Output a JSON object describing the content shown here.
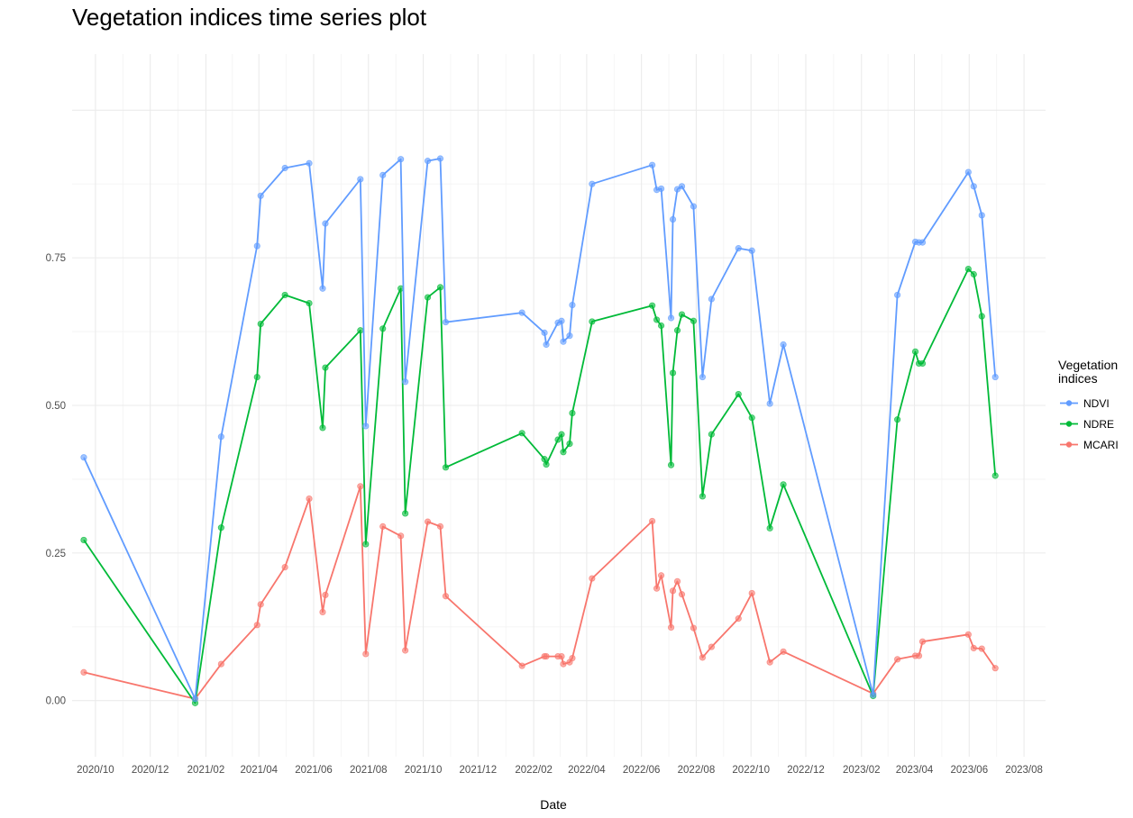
{
  "chart_data": {
    "type": "line",
    "title": "Vegetation indices time series plot",
    "xlabel": "Date",
    "ylabel": "",
    "xlim": [
      "2020-09-05",
      "2023-08-25"
    ],
    "ylim": [
      -0.095,
      1.095
    ],
    "y_ticks": [
      0.0,
      0.25,
      0.5,
      0.75
    ],
    "y_tick_labels": [
      "0.00",
      "0.25",
      "0.50",
      "0.75"
    ],
    "x_ticks": [
      "2020-10-01",
      "2020-12-01",
      "2021-02-01",
      "2021-04-01",
      "2021-06-01",
      "2021-08-01",
      "2021-10-01",
      "2021-12-01",
      "2022-02-01",
      "2022-04-01",
      "2022-06-01",
      "2022-08-01",
      "2022-10-01",
      "2022-12-01",
      "2023-02-01",
      "2023-04-01",
      "2023-06-01",
      "2023-08-01"
    ],
    "x_tick_labels": [
      "2020/10",
      "2020/12",
      "2021/02",
      "2021/04",
      "2021/06",
      "2021/08",
      "2021/10",
      "2021/12",
      "2022/02",
      "2022/04",
      "2022/06",
      "2022/08",
      "2022/10",
      "2022/12",
      "2023/02",
      "2023/04",
      "2023/06",
      "2023/08"
    ],
    "grid": true,
    "legend_title": "Vegetation\nindices",
    "legend_position": "right",
    "x": [
      "2020-09-18",
      "2021-01-20",
      "2021-02-18",
      "2021-03-30",
      "2021-04-03",
      "2021-04-30",
      "2021-05-27",
      "2021-06-11",
      "2021-06-14",
      "2021-07-23",
      "2021-07-29",
      "2021-08-17",
      "2021-09-06",
      "2021-09-11",
      "2021-10-06",
      "2021-10-20",
      "2021-10-26",
      "2022-01-19",
      "2022-02-13",
      "2022-02-15",
      "2022-02-28",
      "2022-03-04",
      "2022-03-06",
      "2022-03-13",
      "2022-03-16",
      "2022-04-07",
      "2022-06-13",
      "2022-06-18",
      "2022-06-23",
      "2022-07-04",
      "2022-07-06",
      "2022-07-11",
      "2022-07-16",
      "2022-07-29",
      "2022-08-08",
      "2022-08-18",
      "2022-09-17",
      "2022-10-02",
      "2022-10-22",
      "2022-11-06",
      "2023-02-14",
      "2023-03-13",
      "2023-04-02",
      "2023-04-06",
      "2023-04-10",
      "2023-05-31",
      "2023-06-06",
      "2023-06-15",
      "2023-06-30"
    ],
    "series": [
      {
        "name": "NDVI",
        "color": "#619CFF",
        "values": [
          0.412,
          0.003,
          0.447,
          0.77,
          0.855,
          0.902,
          0.91,
          0.698,
          0.808,
          0.883,
          0.465,
          0.89,
          0.917,
          0.54,
          0.914,
          0.918,
          0.641,
          0.657,
          0.623,
          0.603,
          0.64,
          0.643,
          0.608,
          0.618,
          0.67,
          0.875,
          0.907,
          0.865,
          0.867,
          0.648,
          0.815,
          0.866,
          0.871,
          0.837,
          0.548,
          0.68,
          0.766,
          0.762,
          0.503,
          0.603,
          0.01,
          0.687,
          0.777,
          0.776,
          0.776,
          0.895,
          0.871,
          0.822,
          0.548
        ]
      },
      {
        "name": "NDRE",
        "color": "#00BA38",
        "values": [
          0.272,
          -0.004,
          0.293,
          0.548,
          0.638,
          0.687,
          0.673,
          0.462,
          0.564,
          0.627,
          0.265,
          0.63,
          0.698,
          0.317,
          0.683,
          0.7,
          0.395,
          0.453,
          0.409,
          0.4,
          0.442,
          0.451,
          0.421,
          0.435,
          0.487,
          0.642,
          0.669,
          0.645,
          0.635,
          0.399,
          0.555,
          0.627,
          0.654,
          0.643,
          0.346,
          0.451,
          0.519,
          0.479,
          0.292,
          0.366,
          0.008,
          0.476,
          0.591,
          0.571,
          0.571,
          0.731,
          0.722,
          0.651,
          0.381
        ]
      },
      {
        "name": "MCARI",
        "color": "#F8766D",
        "values": [
          0.048,
          0.003,
          0.062,
          0.128,
          0.163,
          0.226,
          0.342,
          0.15,
          0.179,
          0.363,
          0.079,
          0.295,
          0.279,
          0.085,
          0.303,
          0.295,
          0.177,
          0.059,
          0.075,
          0.075,
          0.075,
          0.075,
          0.062,
          0.065,
          0.072,
          0.207,
          0.304,
          0.19,
          0.212,
          0.124,
          0.186,
          0.202,
          0.18,
          0.123,
          0.073,
          0.091,
          0.139,
          0.182,
          0.065,
          0.083,
          0.012,
          0.07,
          0.076,
          0.076,
          0.1,
          0.112,
          0.089,
          0.088,
          0.055
        ]
      }
    ]
  }
}
